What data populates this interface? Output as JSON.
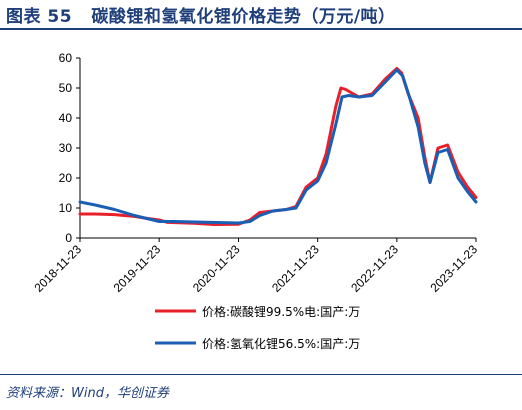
{
  "header": {
    "figure_label": "图表 55",
    "title": "碳酸锂和氢氧化锂价格走势（万元/吨）"
  },
  "footer": {
    "source": "资料来源：Wind，华创证券"
  },
  "chart_data": {
    "type": "line",
    "title": "碳酸锂和氢氧化锂价格走势（万元/吨）",
    "xlabel": "",
    "ylabel": "",
    "x_ticks": [
      "2018-11-23",
      "2019-11-23",
      "2020-11-23",
      "2021-11-23",
      "2022-11-23",
      "2023-11-23"
    ],
    "y_ticks": [
      0,
      10,
      20,
      30,
      40,
      50,
      60
    ],
    "ylim": [
      0,
      60
    ],
    "xlim": [
      "2018-11-23",
      "2023-11-23"
    ],
    "grid": false,
    "legend_position": "bottom",
    "series": [
      {
        "name": "价格:碳酸锂99.5%电:国产:万",
        "color": "#e8202a",
        "points": [
          [
            "2018-11-23",
            8.0
          ],
          [
            "2019-02-01",
            8.0
          ],
          [
            "2019-05-01",
            7.8
          ],
          [
            "2019-08-01",
            7.2
          ],
          [
            "2019-10-01",
            6.5
          ],
          [
            "2019-11-23",
            6.0
          ],
          [
            "2020-01-01",
            5.2
          ],
          [
            "2020-05-01",
            4.9
          ],
          [
            "2020-08-01",
            4.5
          ],
          [
            "2020-11-23",
            4.6
          ],
          [
            "2021-01-15",
            6.0
          ],
          [
            "2021-03-01",
            8.5
          ],
          [
            "2021-05-01",
            9.0
          ],
          [
            "2021-07-01",
            9.5
          ],
          [
            "2021-08-15",
            10.5
          ],
          [
            "2021-10-01",
            17.0
          ],
          [
            "2021-11-23",
            20.0
          ],
          [
            "2022-01-01",
            28.0
          ],
          [
            "2022-02-15",
            44.0
          ],
          [
            "2022-03-10",
            50.0
          ],
          [
            "2022-04-01",
            49.5
          ],
          [
            "2022-06-01",
            47.0
          ],
          [
            "2022-08-01",
            48.0
          ],
          [
            "2022-10-01",
            53.0
          ],
          [
            "2022-11-23",
            56.5
          ],
          [
            "2022-12-15",
            55.0
          ],
          [
            "2023-01-15",
            48.0
          ],
          [
            "2023-03-01",
            40.0
          ],
          [
            "2023-04-01",
            27.0
          ],
          [
            "2023-04-25",
            18.5
          ],
          [
            "2023-06-01",
            30.0
          ],
          [
            "2023-07-15",
            31.0
          ],
          [
            "2023-09-01",
            22.0
          ],
          [
            "2023-10-15",
            17.0
          ],
          [
            "2023-11-23",
            13.5
          ]
        ]
      },
      {
        "name": "价格:氢氧化锂56.5%:国产:万",
        "color": "#1a5fb4",
        "points": [
          [
            "2018-11-23",
            12.0
          ],
          [
            "2019-02-01",
            11.0
          ],
          [
            "2019-05-01",
            9.5
          ],
          [
            "2019-08-01",
            7.5
          ],
          [
            "2019-11-23",
            5.5
          ],
          [
            "2020-02-01",
            5.5
          ],
          [
            "2020-06-01",
            5.3
          ],
          [
            "2020-11-23",
            5.0
          ],
          [
            "2021-01-15",
            5.5
          ],
          [
            "2021-03-01",
            7.5
          ],
          [
            "2021-05-01",
            9.0
          ],
          [
            "2021-07-01",
            9.5
          ],
          [
            "2021-08-15",
            10.0
          ],
          [
            "2021-10-01",
            16.0
          ],
          [
            "2021-11-23",
            19.0
          ],
          [
            "2022-01-01",
            25.0
          ],
          [
            "2022-02-15",
            38.0
          ],
          [
            "2022-03-15",
            47.0
          ],
          [
            "2022-04-15",
            47.5
          ],
          [
            "2022-06-01",
            47.0
          ],
          [
            "2022-08-01",
            47.5
          ],
          [
            "2022-10-01",
            52.0
          ],
          [
            "2022-11-23",
            56.0
          ],
          [
            "2022-12-20",
            54.0
          ],
          [
            "2023-01-20",
            47.0
          ],
          [
            "2023-03-01",
            37.0
          ],
          [
            "2023-04-01",
            25.0
          ],
          [
            "2023-04-25",
            18.5
          ],
          [
            "2023-06-01",
            28.5
          ],
          [
            "2023-07-15",
            29.5
          ],
          [
            "2023-09-01",
            20.0
          ],
          [
            "2023-10-15",
            15.5
          ],
          [
            "2023-11-23",
            12.0
          ]
        ]
      }
    ]
  }
}
